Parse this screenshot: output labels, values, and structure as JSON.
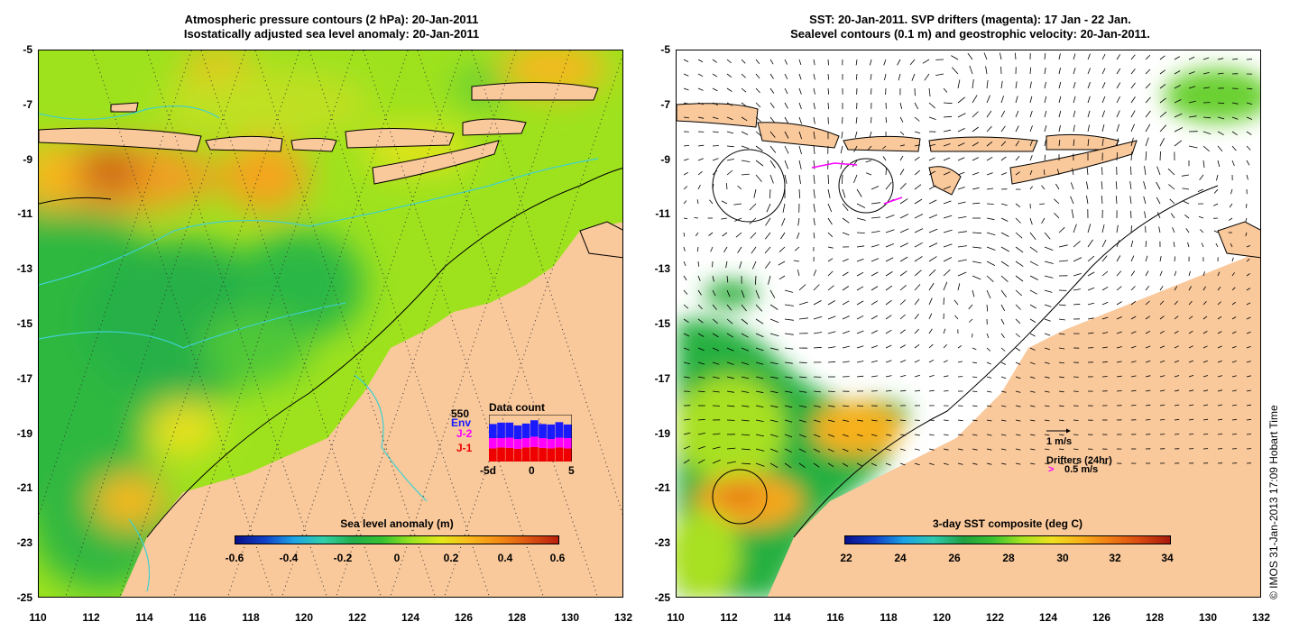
{
  "left_panel": {
    "title_line1": "Atmospheric pressure contours (2 hPa): 20-Jan-2011",
    "title_line2": "Isostatically adjusted sea level anomaly: 20-Jan-2011",
    "colorbar": {
      "title": "Sea level anomaly (m)",
      "ticks": [
        "-0.6",
        "-0.4",
        "-0.2",
        "0",
        "0.2",
        "0.4",
        "0.6"
      ]
    },
    "data_count": {
      "title": "Data count",
      "max_label": "550",
      "legend": [
        "Env",
        "J-2",
        "J-1"
      ],
      "x_labels": [
        "-5d",
        "0",
        "5"
      ],
      "colors": {
        "Env": "#1a1aff",
        "J-2": "#ff00ff",
        "J-1": "#ee0000"
      },
      "bars": [
        {
          "J-1": 0.28,
          "J-2": 0.22,
          "Env": 0.3
        },
        {
          "J-1": 0.3,
          "J-2": 0.2,
          "Env": 0.33
        },
        {
          "J-1": 0.29,
          "J-2": 0.22,
          "Env": 0.32
        },
        {
          "J-1": 0.27,
          "J-2": 0.21,
          "Env": 0.29
        },
        {
          "J-1": 0.3,
          "J-2": 0.2,
          "Env": 0.31
        },
        {
          "J-1": 0.31,
          "J-2": 0.22,
          "Env": 0.35
        },
        {
          "J-1": 0.29,
          "J-2": 0.21,
          "Env": 0.3
        },
        {
          "J-1": 0.28,
          "J-2": 0.2,
          "Env": 0.31
        },
        {
          "J-1": 0.3,
          "J-2": 0.21,
          "Env": 0.33
        },
        {
          "J-1": 0.28,
          "J-2": 0.22,
          "Env": 0.29
        }
      ]
    }
  },
  "right_panel": {
    "title_line1": "SST: 20-Jan-2011. SVP drifters (magenta): 17 Jan - 22 Jan.",
    "title_line2": "Sealevel contours (0.1 m) and geostrophic velocity: 20-Jan-2011.",
    "colorbar": {
      "title": "3-day SST composite (deg C)",
      "ticks": [
        "22",
        "24",
        "26",
        "28",
        "30",
        "32",
        "34"
      ]
    },
    "velocity_legend": "1 m/s",
    "drifter_legend_title": "Drifters (24hr)",
    "drifter_legend_value": "0.5 m/s"
  },
  "axes": {
    "x_ticks": [
      "110",
      "112",
      "114",
      "116",
      "118",
      "120",
      "122",
      "124",
      "126",
      "128",
      "130",
      "132"
    ],
    "y_ticks": [
      "-5",
      "-7",
      "-9",
      "-11",
      "-13",
      "-15",
      "-17",
      "-19",
      "-21",
      "-23",
      "-25"
    ],
    "x_range": [
      110,
      132
    ],
    "y_range": [
      -25,
      -5
    ]
  },
  "colors": {
    "land": "#f9c89b",
    "ocean_bg": "#8fd62a",
    "sst_missing": "#ffffff",
    "drifter": "#ff00ff",
    "contour": "#000000",
    "bathymetry": "#40d0d0"
  },
  "copyright": "© IMOS 31-Jan-2013 17:09 Hobart Time"
}
